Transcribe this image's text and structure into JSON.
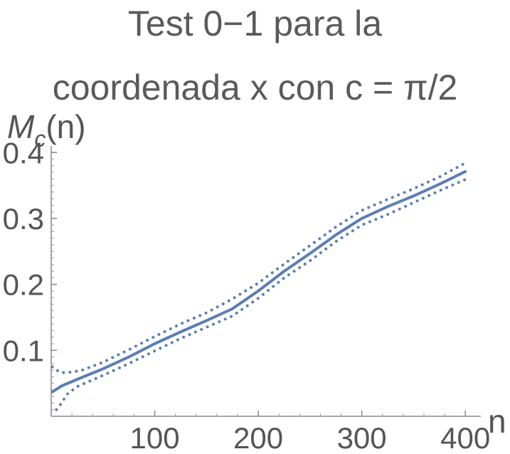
{
  "chart_data": {
    "type": "line",
    "title_lines": [
      "Test 0−1 para la",
      "coordenada x con c = π/2"
    ],
    "ylabel": {
      "symbol": "M",
      "subscript": "c",
      "suffix": "(n)"
    },
    "xlabel": "n",
    "xlim": [
      0,
      415
    ],
    "ylim": [
      0,
      0.41
    ],
    "x_ticks": [
      100,
      200,
      300,
      400
    ],
    "x_tick_labels": [
      "100",
      "200",
      "300",
      "400"
    ],
    "y_ticks": [
      0.1,
      0.2,
      0.3,
      0.4
    ],
    "y_tick_labels": [
      "0.1",
      "0.2",
      "0.3",
      "0.4"
    ],
    "grid": false,
    "color": "#5b7db5",
    "series": [
      {
        "style": "solid",
        "x": [
          1,
          10,
          25,
          50,
          75,
          100,
          125,
          150,
          175,
          200,
          225,
          250,
          275,
          300,
          325,
          350,
          375,
          400
        ],
        "y": [
          0.037,
          0.046,
          0.056,
          0.072,
          0.09,
          0.11,
          0.128,
          0.145,
          0.163,
          0.19,
          0.22,
          0.247,
          0.275,
          0.3,
          0.318,
          0.334,
          0.352,
          0.371
        ]
      },
      {
        "style": "dotted",
        "x": [
          1,
          5,
          10,
          20,
          30,
          50,
          75,
          100,
          125,
          150,
          175,
          200,
          225,
          250,
          275,
          300,
          325,
          350,
          375,
          400
        ],
        "y": [
          0.075,
          0.07,
          0.066,
          0.067,
          0.07,
          0.082,
          0.101,
          0.121,
          0.14,
          0.157,
          0.178,
          0.202,
          0.231,
          0.259,
          0.287,
          0.312,
          0.329,
          0.345,
          0.363,
          0.384
        ]
      },
      {
        "style": "dotted",
        "x": [
          5,
          10,
          15,
          25,
          50,
          75,
          100,
          125,
          150,
          175,
          200,
          225,
          250,
          275,
          300,
          325,
          350,
          375,
          400
        ],
        "y": [
          0.01,
          0.02,
          0.033,
          0.045,
          0.062,
          0.08,
          0.099,
          0.118,
          0.135,
          0.152,
          0.179,
          0.21,
          0.236,
          0.265,
          0.29,
          0.306,
          0.324,
          0.342,
          0.359
        ]
      }
    ]
  }
}
